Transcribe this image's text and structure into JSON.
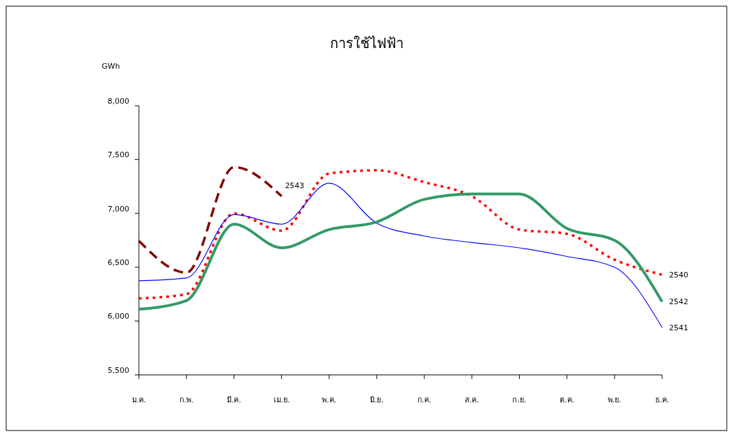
{
  "chart_data": {
    "type": "line",
    "title": "การใช้ไฟฟ้า",
    "ylabel": "GWh",
    "categories": [
      "ม.ค.",
      "ก.พ.",
      "มี.ค.",
      "เม.ย.",
      "พ.ค.",
      "มิ.ย.",
      "ก.ค.",
      "ส.ค.",
      "ก.ย.",
      "ต.ค.",
      "พ.ย.",
      "ธ.ค."
    ],
    "ylim": [
      5500,
      8000
    ],
    "yticks": [
      {
        "value": 5500,
        "label": "5,500"
      },
      {
        "value": 6000,
        "label": "6,000"
      },
      {
        "value": 6500,
        "label": "6,500"
      },
      {
        "value": 7000,
        "label": "7,000"
      },
      {
        "value": 7500,
        "label": "7,500"
      },
      {
        "value": 8000,
        "label": "8,000"
      }
    ],
    "grid": false,
    "series": [
      {
        "name": "2540",
        "color": "#ff0000",
        "line_style": "dotted",
        "values": [
          6210,
          6250,
          7000,
          6840,
          7370,
          7400,
          7290,
          7160,
          6850,
          6810,
          6570,
          6430
        ]
      },
      {
        "name": "2541",
        "color": "#0000ff",
        "line_style": "solid",
        "values": [
          6375,
          6400,
          6990,
          6900,
          7280,
          6910,
          6790,
          6730,
          6680,
          6600,
          6500,
          5940
        ]
      },
      {
        "name": "2542",
        "color": "#339966",
        "line_style": "solid",
        "values": [
          6110,
          6190,
          6900,
          6680,
          6850,
          6920,
          7130,
          7180,
          7180,
          6860,
          6750,
          6180
        ]
      },
      {
        "name": "2543",
        "color": "#800000",
        "line_style": "dashed",
        "values": [
          6745,
          6450,
          7430,
          7160,
          null,
          null,
          null,
          null,
          null,
          null,
          null,
          null
        ]
      }
    ]
  }
}
